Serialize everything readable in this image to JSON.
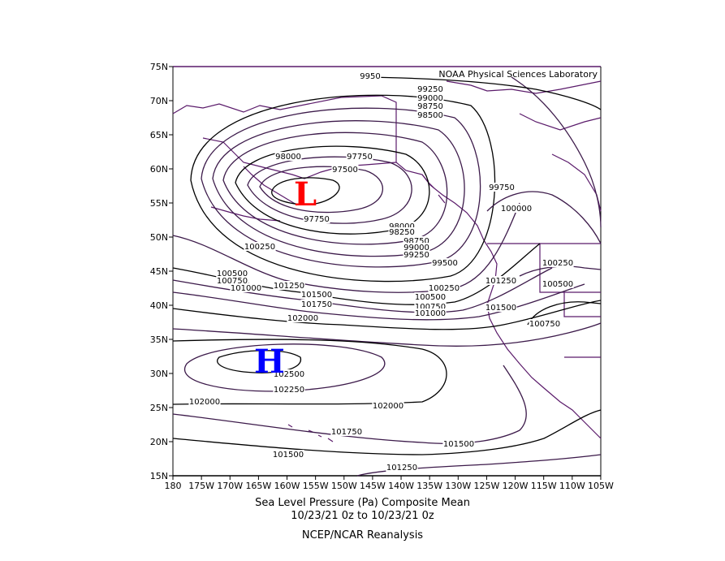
{
  "map": {
    "attribution": "NOAA Physical Sciences Laboratory",
    "lat_ticks": [
      "75N",
      "70N",
      "65N",
      "60N",
      "55N",
      "50N",
      "45N",
      "40N",
      "35N",
      "30N",
      "25N",
      "20N",
      "15N"
    ],
    "lon_ticks": [
      "180",
      "175W",
      "170W",
      "165W",
      "160W",
      "155W",
      "150W",
      "145W",
      "140W",
      "135W",
      "130W",
      "125W",
      "120W",
      "115W",
      "110W",
      "105W"
    ],
    "low_center": {
      "symbol": "L",
      "color": "#ff0000"
    },
    "high_center": {
      "symbol": "H",
      "color": "#0000ff"
    },
    "contour_labels": [
      "9950",
      "99250",
      "99000",
      "98750",
      "98500",
      "98000",
      "97750",
      "97500",
      "97750",
      "99750",
      "100000",
      "98000",
      "98250",
      "98750",
      "99000",
      "99250",
      "99500",
      "100250",
      "100500",
      "100750",
      "101000",
      "101250",
      "101500",
      "101750",
      "102000",
      "100250",
      "100500",
      "100750",
      "101000",
      "101250",
      "101500",
      "100250",
      "100500",
      "100750",
      "102500",
      "102250",
      "102000",
      "102000",
      "101750",
      "101500",
      "101500",
      "101250"
    ],
    "colors": {
      "contour_bold": "#000000",
      "contour_thin": "#3c1a4a",
      "coast": "#5a1a6a"
    }
  },
  "caption": {
    "line1": "Sea Level Pressure (Pa)    Composite Mean",
    "line2": "10/23/21 0z  to 10/23/21 0z",
    "line3": "NCEP/NCAR Reanalysis"
  }
}
